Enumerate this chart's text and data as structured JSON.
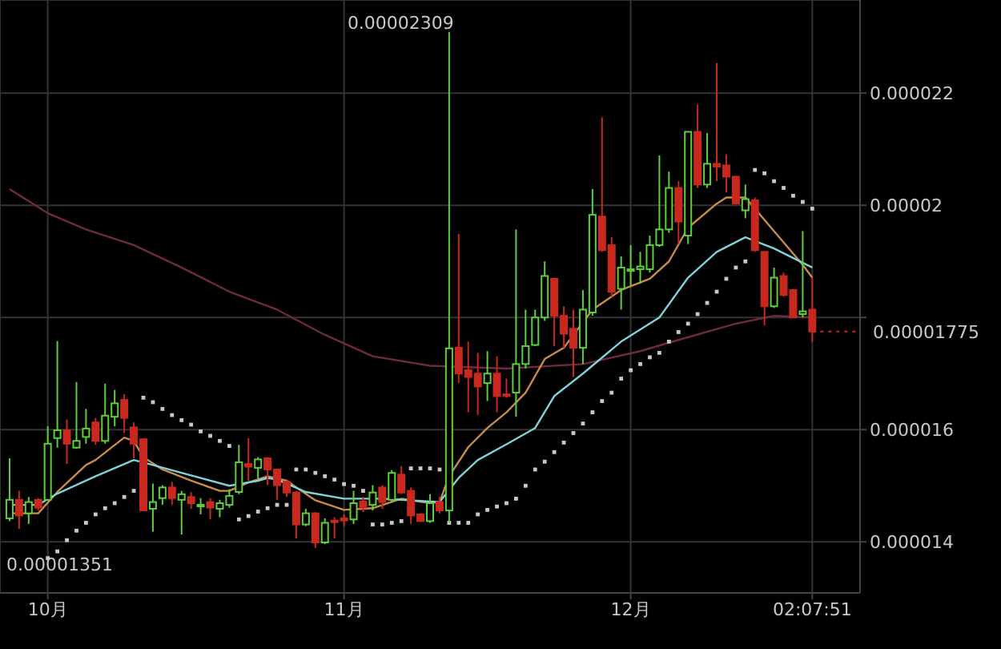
{
  "chart_data": {
    "type": "candlestick",
    "x": [
      "--09-27",
      "--09-28",
      "--09-29",
      "--09-30",
      "--10-01",
      "--10-02",
      "--10-03",
      "--10-04",
      "--10-05",
      "--10-06",
      "--10-07",
      "--10-08",
      "--10-09",
      "--10-10",
      "--10-11",
      "--10-12",
      "--10-13",
      "--10-14",
      "--10-15",
      "--10-16",
      "--10-17",
      "--10-18",
      "--10-19",
      "--10-20",
      "--10-21",
      "--10-22",
      "--10-23",
      "--10-24",
      "--10-25",
      "--10-26",
      "--10-27",
      "--10-28",
      "--10-29",
      "--10-30",
      "--10-31",
      "--11-01",
      "--11-02",
      "--11-03",
      "--11-04",
      "--11-05",
      "--11-06",
      "--11-07",
      "--11-08",
      "--11-09",
      "--11-10",
      "--11-11",
      "--11-12",
      "--11-13",
      "--11-14",
      "--11-15",
      "--11-16",
      "--11-17",
      "--11-18",
      "--11-19",
      "--11-20",
      "--11-21",
      "--11-22",
      "--11-23",
      "--11-24",
      "--11-25",
      "--11-26",
      "--11-27",
      "--11-28",
      "--11-29",
      "--11-30",
      "--12-01",
      "--12-02",
      "--12-03",
      "--12-04",
      "--12-05",
      "--12-06",
      "--12-07",
      "--12-08",
      "--12-09",
      "--12-10",
      "--12-11",
      "--12-12",
      "--12-13",
      "--12-14",
      "--12-15",
      "--12-16",
      "--12-17",
      "--12-18",
      "--12-19",
      "--12-20"
    ],
    "ohlc": [
      [
        1.442e-05,
        1.549e-05,
        1.437e-05,
        1.475e-05
      ],
      [
        1.475e-05,
        1.491e-05,
        1.423e-05,
        1.447e-05
      ],
      [
        1.451e-05,
        1.48e-05,
        1.432e-05,
        1.471e-05
      ],
      [
        1.475e-05,
        1.478e-05,
        1.456e-05,
        1.461e-05
      ],
      [
        1.475e-05,
        1.606e-05,
        1.474e-05,
        1.575e-05
      ],
      [
        1.585e-05,
        1.758e-05,
        1.568e-05,
        1.599e-05
      ],
      [
        1.599e-05,
        1.618e-05,
        1.539e-05,
        1.575e-05
      ],
      [
        1.568e-05,
        1.685e-05,
        1.566e-05,
        1.58e-05
      ],
      [
        1.587e-05,
        1.637e-05,
        1.575e-05,
        1.602e-05
      ],
      [
        1.613e-05,
        1.621e-05,
        1.573e-05,
        1.58e-05
      ],
      [
        1.58e-05,
        1.682e-05,
        1.575e-05,
        1.625e-05
      ],
      [
        1.623e-05,
        1.671e-05,
        1.606e-05,
        1.647e-05
      ],
      [
        1.653e-05,
        1.663e-05,
        1.594e-05,
        1.621e-05
      ],
      [
        1.604e-05,
        1.613e-05,
        1.549e-05,
        1.575e-05
      ],
      [
        1.583e-05,
        1.583e-05,
        1.456e-05,
        1.456e-05
      ],
      [
        1.459e-05,
        1.504e-05,
        1.418e-05,
        1.471e-05
      ],
      [
        1.478e-05,
        1.501e-05,
        1.466e-05,
        1.497e-05
      ],
      [
        1.497e-05,
        1.507e-05,
        1.466e-05,
        1.478e-05
      ],
      [
        1.475e-05,
        1.491e-05,
        1.413e-05,
        1.485e-05
      ],
      [
        1.48e-05,
        1.489e-05,
        1.459e-05,
        1.469e-05
      ],
      [
        1.465e-05,
        1.478e-05,
        1.449e-05,
        1.466e-05
      ],
      [
        1.471e-05,
        1.478e-05,
        1.44e-05,
        1.461e-05
      ],
      [
        1.459e-05,
        1.475e-05,
        1.444e-05,
        1.469e-05
      ],
      [
        1.466e-05,
        1.494e-05,
        1.461e-05,
        1.482e-05
      ],
      [
        1.489e-05,
        1.573e-05,
        1.485e-05,
        1.542e-05
      ],
      [
        1.539e-05,
        1.585e-05,
        1.509e-05,
        1.534e-05
      ],
      [
        1.532e-05,
        1.551e-05,
        1.513e-05,
        1.547e-05
      ],
      [
        1.549e-05,
        1.549e-05,
        1.501e-05,
        1.529e-05
      ],
      [
        1.529e-05,
        1.529e-05,
        1.475e-05,
        1.501e-05
      ],
      [
        1.507e-05,
        1.509e-05,
        1.48e-05,
        1.488e-05
      ],
      [
        1.488e-05,
        1.491e-05,
        1.406e-05,
        1.431e-05
      ],
      [
        1.431e-05,
        1.459e-05,
        1.428e-05,
        1.451e-05
      ],
      [
        1.451e-05,
        1.453e-05,
        1.389e-05,
        1.399e-05
      ],
      [
        1.399e-05,
        1.442e-05,
        1.396e-05,
        1.434e-05
      ],
      [
        1.438e-05,
        1.444e-05,
        1.406e-05,
        1.436e-05
      ],
      [
        1.442e-05,
        1.449e-05,
        1.428e-05,
        1.438e-05
      ],
      [
        1.44e-05,
        1.491e-05,
        1.432e-05,
        1.469e-05
      ],
      [
        1.472e-05,
        1.48e-05,
        1.453e-05,
        1.461e-05
      ],
      [
        1.466e-05,
        1.501e-05,
        1.456e-05,
        1.488e-05
      ],
      [
        1.497e-05,
        1.501e-05,
        1.459e-05,
        1.471e-05
      ],
      [
        1.475e-05,
        1.528e-05,
        1.472e-05,
        1.523e-05
      ],
      [
        1.52e-05,
        1.535e-05,
        1.485e-05,
        1.488e-05
      ],
      [
        1.491e-05,
        1.497e-05,
        1.432e-05,
        1.447e-05
      ],
      [
        1.449e-05,
        1.451e-05,
        1.437e-05,
        1.437e-05
      ],
      [
        1.437e-05,
        1.485e-05,
        1.434e-05,
        1.469e-05
      ],
      [
        1.471e-05,
        1.48e-05,
        1.451e-05,
        1.456e-05
      ],
      [
        1.456e-05,
        2.309e-05,
        1.434e-05,
        1.745e-05
      ],
      [
        1.746e-05,
        1.949e-05,
        1.683e-05,
        1.7e-05
      ],
      [
        1.706e-05,
        1.757e-05,
        1.631e-05,
        1.694e-05
      ],
      [
        1.7e-05,
        1.737e-05,
        1.626e-05,
        1.677e-05
      ],
      [
        1.683e-05,
        1.74e-05,
        1.651e-05,
        1.7e-05
      ],
      [
        1.7e-05,
        1.731e-05,
        1.631e-05,
        1.66e-05
      ],
      [
        1.663e-05,
        1.691e-05,
        1.657e-05,
        1.66e-05
      ],
      [
        1.666e-05,
        1.957e-05,
        1.623e-05,
        1.717e-05
      ],
      [
        1.717e-05,
        1.814e-05,
        1.709e-05,
        1.749e-05
      ],
      [
        1.751e-05,
        1.814e-05,
        1.749e-05,
        1.8e-05
      ],
      [
        1.8e-05,
        1.9e-05,
        1.794e-05,
        1.874e-05
      ],
      [
        1.869e-05,
        1.871e-05,
        1.749e-05,
        1.803e-05
      ],
      [
        1.803e-05,
        1.82e-05,
        1.746e-05,
        1.771e-05
      ],
      [
        1.78e-05,
        1.814e-05,
        1.694e-05,
        1.746e-05
      ],
      [
        1.746e-05,
        1.849e-05,
        1.717e-05,
        1.814e-05
      ],
      [
        1.809e-05,
        2.029e-05,
        1.803e-05,
        1.983e-05
      ],
      [
        1.98e-05,
        2.157e-05,
        1.917e-05,
        1.92e-05
      ],
      [
        1.929e-05,
        1.943e-05,
        1.837e-05,
        1.846e-05
      ],
      [
        1.851e-05,
        1.909e-05,
        1.814e-05,
        1.889e-05
      ],
      [
        1.883e-05,
        1.929e-05,
        1.857e-05,
        1.886e-05
      ],
      [
        1.886e-05,
        1.917e-05,
        1.86e-05,
        1.891e-05
      ],
      [
        1.886e-05,
        1.946e-05,
        1.88e-05,
        1.929e-05
      ],
      [
        1.929e-05,
        2.089e-05,
        1.926e-05,
        1.957e-05
      ],
      [
        1.957e-05,
        2.06e-05,
        1.951e-05,
        2.031e-05
      ],
      [
        2.031e-05,
        2.043e-05,
        1.931e-05,
        1.971e-05
      ],
      [
        1.946e-05,
        2.131e-05,
        1.931e-05,
        2.131e-05
      ],
      [
        2.131e-05,
        2.18e-05,
        2.031e-05,
        2.037e-05
      ],
      [
        2.037e-05,
        2.129e-05,
        2.031e-05,
        2.074e-05
      ],
      [
        2.074e-05,
        2.254e-05,
        2.043e-05,
        2.069e-05
      ],
      [
        2.071e-05,
        2.091e-05,
        2.023e-05,
        2.051e-05
      ],
      [
        2.051e-05,
        2.051e-05,
        2.003e-05,
        2.003e-05
      ],
      [
        1.991e-05,
        2.037e-05,
        1.977e-05,
        2.011e-05
      ],
      [
        2.009e-05,
        2.014e-05,
        1.917e-05,
        1.92e-05
      ],
      [
        1.917e-05,
        1.917e-05,
        1.786e-05,
        1.82e-05
      ],
      [
        1.82e-05,
        1.889e-05,
        1.817e-05,
        1.871e-05
      ],
      [
        1.874e-05,
        1.88e-05,
        1.837e-05,
        1.84e-05
      ],
      [
        1.849e-05,
        1.851e-05,
        1.8e-05,
        1.8e-05
      ],
      [
        1.806e-05,
        1.954e-05,
        1.8e-05,
        1.811e-05
      ],
      [
        1.814e-05,
        1.871e-05,
        1.757e-05,
        1.775e-05
      ]
    ],
    "colors": [
      "#5cd03a",
      "#c8281e",
      "#5cd03a",
      "#c8281e",
      "#5cd03a",
      "#5cd03a",
      "#c8281e",
      "#5cd03a",
      "#5cd03a",
      "#c8281e",
      "#5cd03a",
      "#5cd03a",
      "#c8281e",
      "#c8281e",
      "#c8281e",
      "#5cd03a",
      "#5cd03a",
      "#c8281e",
      "#5cd03a",
      "#c8281e",
      "#5cd03a",
      "#c8281e",
      "#5cd03a",
      "#5cd03a",
      "#5cd03a",
      "#c8281e",
      "#5cd03a",
      "#c8281e",
      "#c8281e",
      "#c8281e",
      "#c8281e",
      "#5cd03a",
      "#c8281e",
      "#5cd03a",
      "#c8281e",
      "#c8281e",
      "#5cd03a",
      "#c8281e",
      "#5cd03a",
      "#c8281e",
      "#5cd03a",
      "#c8281e",
      "#c8281e",
      "#c8281e",
      "#5cd03a",
      "#c8281e",
      "#5cd03a",
      "#c8281e",
      "#c8281e",
      "#c8281e",
      "#5cd03a",
      "#c8281e",
      "#c8281e",
      "#5cd03a",
      "#5cd03a",
      "#5cd03a",
      "#5cd03a",
      "#c8281e",
      "#c8281e",
      "#c8281e",
      "#5cd03a",
      "#5cd03a",
      "#c8281e",
      "#c8281e",
      "#5cd03a",
      "#5cd03a",
      "#5cd03a",
      "#5cd03a",
      "#5cd03a",
      "#5cd03a",
      "#c8281e",
      "#5cd03a",
      "#c8281e",
      "#5cd03a",
      "#c8281e",
      "#c8281e",
      "#c8281e",
      "#5cd03a",
      "#c8281e",
      "#c8281e",
      "#5cd03a",
      "#c8281e",
      "#c8281e",
      "#5cd03a",
      "#c8281e"
    ],
    "series": [
      {
        "type": "line",
        "color": "#6e2a45",
        "x": [
          "--09-27",
          "--10-01",
          "--10-05",
          "--10-10",
          "--10-15",
          "--10-20",
          "--10-25",
          "--10-30",
          "--11-04",
          "--11-10",
          "--11-18",
          "--11-26",
          "--12-02",
          "--12-06",
          "--12-12",
          "--12-16",
          "--12-20"
        ],
        "values": [
          2.029e-05,
          1.986e-05,
          1.957e-05,
          1.929e-05,
          1.889e-05,
          1.846e-05,
          1.814e-05,
          1.769e-05,
          1.731e-05,
          1.714e-05,
          1.709e-05,
          1.717e-05,
          1.74e-05,
          1.76e-05,
          1.789e-05,
          1.803e-05,
          1.8e-05
        ]
      },
      {
        "type": "line",
        "color": "#c98a4b",
        "x": [
          "--09-27",
          "--09-30",
          "--10-02",
          "--10-05",
          "--10-06",
          "--10-09",
          "--10-10",
          "--10-11",
          "--10-13",
          "--10-16",
          "--10-19",
          "--10-20",
          "--10-22",
          "--10-24",
          "--10-26",
          "--10-29",
          "--11-01",
          "--11-04",
          "--11-07",
          "--11-10",
          "--11-11",
          "--11-12",
          "--11-14",
          "--11-16",
          "--11-18",
          "--11-20",
          "--11-22",
          "--11-24",
          "--11-27",
          "--11-30",
          "--12-03",
          "--12-05",
          "--12-07",
          "--12-10",
          "--12-11",
          "--12-13",
          "--12-15",
          "--12-17",
          "--12-19",
          "--12-20"
        ],
        "values": [
          1.451e-05,
          1.451e-05,
          1.489e-05,
          1.537e-05,
          1.546e-05,
          1.586e-05,
          1.58e-05,
          1.551e-05,
          1.529e-05,
          1.509e-05,
          1.491e-05,
          1.491e-05,
          1.506e-05,
          1.517e-05,
          1.509e-05,
          1.474e-05,
          1.457e-05,
          1.46e-05,
          1.477e-05,
          1.469e-05,
          1.471e-05,
          1.517e-05,
          1.569e-05,
          1.603e-05,
          1.631e-05,
          1.666e-05,
          1.726e-05,
          1.746e-05,
          1.814e-05,
          1.849e-05,
          1.869e-05,
          1.9e-05,
          1.96e-05,
          2.003e-05,
          2.014e-05,
          2.014e-05,
          1.974e-05,
          1.934e-05,
          1.894e-05,
          1.871e-05
        ]
      },
      {
        "type": "line",
        "color": "#7fd3d8",
        "x": [
          "--09-27",
          "--09-30",
          "--10-02",
          "--10-06",
          "--10-10",
          "--10-12",
          "--10-15",
          "--10-20",
          "--10-23",
          "--10-24",
          "--10-25",
          "--10-28",
          "--11-01",
          "--11-05",
          "--11-08",
          "--11-11",
          "--11-13",
          "--11-15",
          "--11-18",
          "--11-21",
          "--11-23",
          "--11-26",
          "--11-30",
          "--12-04",
          "--12-07",
          "--12-10",
          "--12-13",
          "--12-16",
          "--12-20"
        ],
        "values": [
          1.466e-05,
          1.466e-05,
          1.486e-05,
          1.517e-05,
          1.546e-05,
          1.537e-05,
          1.523e-05,
          1.5e-05,
          1.509e-05,
          1.514e-05,
          1.511e-05,
          1.489e-05,
          1.477e-05,
          1.477e-05,
          1.474e-05,
          1.471e-05,
          1.514e-05,
          1.546e-05,
          1.574e-05,
          1.603e-05,
          1.66e-05,
          1.7e-05,
          1.757e-05,
          1.8e-05,
          1.871e-05,
          1.917e-05,
          1.943e-05,
          1.923e-05,
          1.889e-05
        ]
      },
      {
        "type": "scatter",
        "color": "#c8c8c8",
        "marker": "square",
        "values": [
          null,
          null,
          null,
          null,
          1.371e-05,
          1.383e-05,
          1.403e-05,
          1.42e-05,
          1.434e-05,
          1.449e-05,
          1.46e-05,
          1.469e-05,
          1.48e-05,
          1.491e-05,
          1.657e-05,
          1.649e-05,
          1.637e-05,
          1.626e-05,
          1.617e-05,
          1.609e-05,
          1.597e-05,
          1.589e-05,
          1.58e-05,
          1.571e-05,
          1.44e-05,
          1.446e-05,
          1.454e-05,
          1.46e-05,
          1.466e-05,
          1.466e-05,
          1.529e-05,
          1.529e-05,
          1.523e-05,
          1.517e-05,
          1.511e-05,
          1.503e-05,
          1.5e-05,
          1.491e-05,
          1.431e-05,
          1.431e-05,
          1.434e-05,
          1.437e-05,
          1.531e-05,
          1.531e-05,
          1.531e-05,
          1.529e-05,
          1.434e-05,
          1.434e-05,
          1.434e-05,
          1.449e-05,
          1.457e-05,
          1.463e-05,
          1.469e-05,
          1.477e-05,
          1.5e-05,
          1.529e-05,
          1.543e-05,
          1.56e-05,
          1.577e-05,
          1.594e-05,
          1.611e-05,
          1.631e-05,
          1.651e-05,
          1.666e-05,
          1.691e-05,
          1.706e-05,
          1.717e-05,
          1.729e-05,
          1.737e-05,
          1.757e-05,
          1.774e-05,
          1.789e-05,
          1.806e-05,
          1.826e-05,
          1.846e-05,
          1.869e-05,
          1.889e-05,
          1.9e-05,
          2.063e-05,
          2.057e-05,
          2.043e-05,
          2.031e-05,
          2.017e-05,
          2.006e-05,
          1.994e-05
        ]
      }
    ],
    "xlim": [
      "--09-26",
      "--12-25"
    ],
    "xticks": [
      {
        "value": "--10-01",
        "label": "10月"
      },
      {
        "value": "--11-01",
        "label": "11月"
      },
      {
        "value": "--12-01",
        "label": "12月"
      },
      {
        "value": "--12-20",
        "label": "02:07:51"
      }
    ],
    "ylim": [
      1.309e-05,
      2.366e-05
    ],
    "yticks": [
      {
        "value": 1.4e-05,
        "label": "0.000014"
      },
      {
        "value": 1.6e-05,
        "label": "0.000016"
      },
      {
        "value": 1.8e-05,
        "label": null
      },
      {
        "value": 2e-05,
        "label": "0.00002"
      },
      {
        "value": 2.2e-05,
        "label": "0.000022"
      }
    ],
    "grid": true,
    "ref_lines": [
      {
        "axis": "y",
        "value": 1.775e-05,
        "label": "0.00001775",
        "color": "#c8281e",
        "line_style": "dotted"
      }
    ],
    "annotations": [
      {
        "text": "0.00002309",
        "x": "--11-12",
        "y": 2.309e-05
      },
      "0.00001351"
    ]
  }
}
